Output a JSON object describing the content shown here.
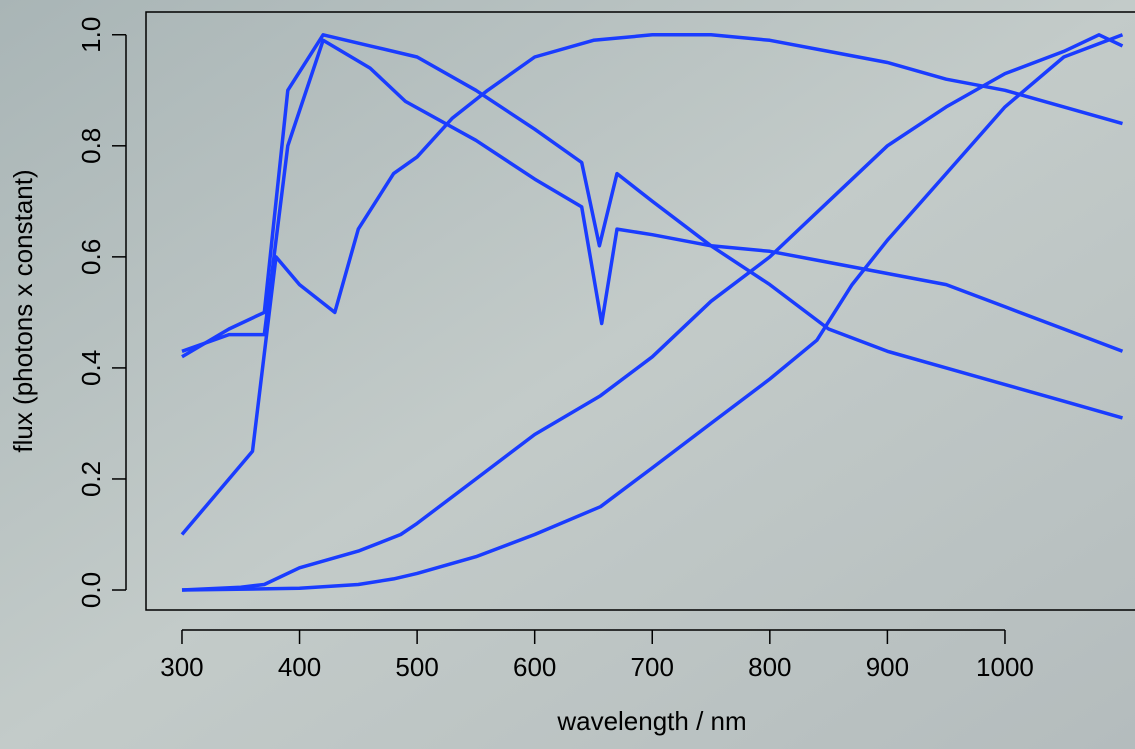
{
  "chart_data": {
    "type": "line",
    "x_label": "wavelength / nm",
    "y_label": "flux (photons x constant)",
    "xlim": [
      269.4,
      1110.6
    ],
    "ylim": [
      -0.036,
      1.041
    ],
    "xticks": [
      300,
      400,
      500,
      600,
      700,
      800,
      900,
      1000
    ],
    "yticks": [
      {
        "value": 0,
        "label": "0.0"
      },
      0.2,
      0.4,
      0.6,
      0.8,
      {
        "value": 1,
        "label": "1.0"
      }
    ],
    "series": [
      {
        "color": "#1a3cff",
        "x": [
          300,
          340,
          370,
          390,
          420,
          460,
          500,
          550,
          600,
          640,
          655,
          670,
          700,
          750,
          800,
          850,
          900,
          950,
          1000,
          1050,
          1100
        ],
        "values": [
          0.42,
          0.47,
          0.5,
          0.9,
          1.0,
          0.98,
          0.96,
          0.9,
          0.83,
          0.77,
          0.62,
          0.75,
          0.7,
          0.62,
          0.55,
          0.47,
          0.43,
          0.4,
          0.37,
          0.34,
          0.31
        ]
      },
      {
        "color": "#1a3cff",
        "x": [
          300,
          340,
          370,
          390,
          420,
          460,
          490,
          550,
          600,
          640,
          657,
          670,
          700,
          750,
          800,
          850,
          900,
          950,
          1000,
          1050,
          1100
        ],
        "values": [
          0.43,
          0.46,
          0.46,
          0.8,
          0.99,
          0.94,
          0.88,
          0.81,
          0.74,
          0.69,
          0.48,
          0.65,
          0.64,
          0.62,
          0.61,
          0.59,
          0.57,
          0.55,
          0.51,
          0.47,
          0.43
        ]
      },
      {
        "color": "#1a3cff",
        "x": [
          300,
          320,
          340,
          360,
          380,
          400,
          430,
          450,
          480,
          500,
          530,
          560,
          600,
          650,
          700,
          750,
          800,
          850,
          900,
          950,
          1000,
          1050,
          1100
        ],
        "values": [
          0.1,
          0.15,
          0.2,
          0.25,
          0.6,
          0.55,
          0.5,
          0.65,
          0.75,
          0.78,
          0.85,
          0.9,
          0.96,
          0.99,
          1.0,
          1.0,
          0.99,
          0.97,
          0.95,
          0.92,
          0.9,
          0.87,
          0.84
        ]
      },
      {
        "color": "#1a3cff",
        "x": [
          300,
          350,
          370,
          400,
          450,
          486,
          500,
          550,
          600,
          656,
          700,
          750,
          800,
          830,
          860,
          900,
          950,
          1000,
          1050,
          1080,
          1100
        ],
        "values": [
          0,
          0.005,
          0.01,
          0.04,
          0.07,
          0.1,
          0.12,
          0.2,
          0.28,
          0.35,
          0.42,
          0.52,
          0.6,
          0.66,
          0.72,
          0.8,
          0.87,
          0.93,
          0.97,
          1.0,
          0.98
        ]
      },
      {
        "color": "#1a3cff",
        "x": [
          300,
          400,
          450,
          480,
          500,
          550,
          600,
          656,
          700,
          750,
          800,
          840,
          870,
          900,
          950,
          1000,
          1050,
          1100
        ],
        "values": [
          0,
          0.003,
          0.01,
          0.02,
          0.03,
          0.06,
          0.1,
          0.15,
          0.22,
          0.3,
          0.38,
          0.45,
          0.55,
          0.63,
          0.75,
          0.87,
          0.96,
          1.0
        ]
      }
    ]
  }
}
